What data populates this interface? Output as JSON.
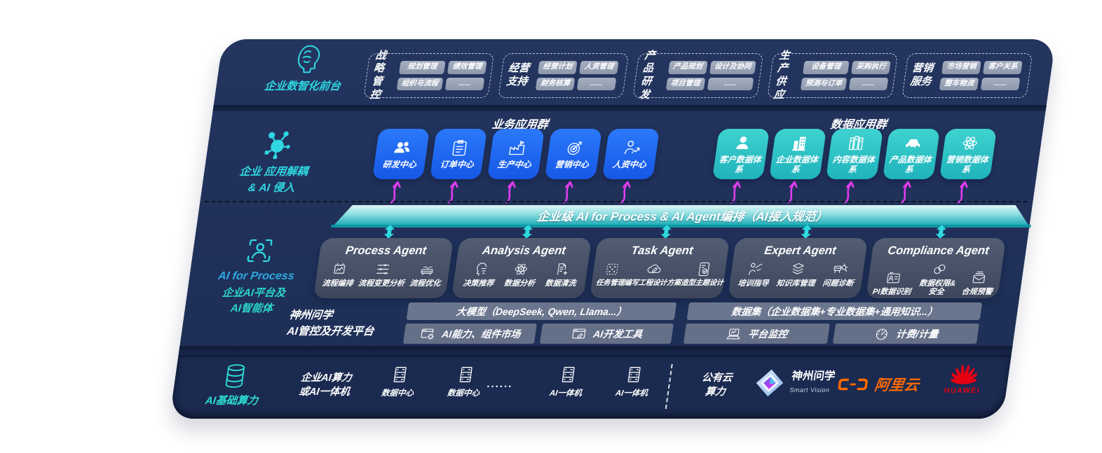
{
  "colors": {
    "accent_cyan": "#2FD8E2",
    "accent_teal": "#2BD5C8",
    "accent_blue": "#2EA9E2",
    "magenta": "#E03CEE",
    "blue_tile": "#1D6BF3",
    "teal_tile": "#2EC8CA",
    "banner_teal": "#22ADB8",
    "ali_orange": "#FF6A00",
    "huawei_red": "#E60012",
    "panel_navy": "#20315B"
  },
  "front_office": {
    "label": "企业数智化前台",
    "icon": "head-brain-icon",
    "groups": [
      {
        "title": "战略管控",
        "tags": [
          "规划管理",
          "绩效管理",
          "组织与流程",
          "......"
        ]
      },
      {
        "title": "经营支持",
        "tags": [
          "经营计划",
          "人资管理",
          "财务核算",
          "......"
        ]
      },
      {
        "title": "产品研发",
        "tags": [
          "产品规划",
          "设计及协同",
          "项目管理",
          "......"
        ]
      },
      {
        "title": "生产供应",
        "tags": [
          "设备管理",
          "采购执行",
          "预测与订单",
          "......"
        ]
      },
      {
        "title": "营销服务",
        "tags": [
          "市场营销",
          "客户关系",
          "整车物流",
          "......"
        ]
      }
    ]
  },
  "app_layer": {
    "icon": "neuron-icon",
    "label_line1": "企业 应用解耦",
    "label_line2": "& AI 侵入",
    "business_group": {
      "title": "业务应用群",
      "tiles": [
        {
          "label": "研发中心",
          "icon": "team-icon"
        },
        {
          "label": "订单中心",
          "icon": "clipboard-icon"
        },
        {
          "label": "生产中心",
          "icon": "factory-icon"
        },
        {
          "label": "营销中心",
          "icon": "target-icon"
        },
        {
          "label": "人资中心",
          "icon": "hr-icon"
        }
      ]
    },
    "data_group": {
      "title": "数据应用群",
      "tiles": [
        {
          "label": "客户数据体系",
          "icon": "person-icon"
        },
        {
          "label": "企业数据体系",
          "icon": "building-icon"
        },
        {
          "label": "内容数据体系",
          "icon": "books-icon"
        },
        {
          "label": "产品数据体系",
          "icon": "car-icon"
        },
        {
          "label": "营销数据体系",
          "icon": "atom-icon"
        }
      ]
    }
  },
  "banner": {
    "text": "企业级 AI for Process & AI Agent编排（AI接入规范）"
  },
  "platform_layer_label": {
    "icon": "scan-person-icon",
    "line1": "AI for Process",
    "line2": "企业AI平台及",
    "line3": "AI智能体"
  },
  "agents": [
    {
      "title": "Process Agent",
      "items": [
        {
          "label": "流程编排",
          "icon": "flow-box-icon"
        },
        {
          "label": "流程变更分析",
          "icon": "sliders-icon"
        },
        {
          "label": "流程优化",
          "icon": "conveyor-icon"
        }
      ]
    },
    {
      "title": "Analysis Agent",
      "items": [
        {
          "label": "决策推荐",
          "icon": "head-idea-icon"
        },
        {
          "label": "数据分析",
          "icon": "atom-icon"
        },
        {
          "label": "数据清洗",
          "icon": "doc-clean-icon"
        }
      ]
    },
    {
      "title": "Task Agent",
      "items": [
        {
          "label": "任务管理",
          "icon": "qr-grid-icon"
        },
        {
          "label": "编写工程设计方案",
          "icon": "cloud-edit-icon"
        },
        {
          "label": "造型主题设计",
          "icon": "design-card-icon"
        }
      ]
    },
    {
      "title": "Expert Agent",
      "items": [
        {
          "label": "培训指导",
          "icon": "training-icon"
        },
        {
          "label": "知识库管理",
          "icon": "layers-icon"
        },
        {
          "label": "问题诊断",
          "icon": "diagnose-icon"
        }
      ]
    },
    {
      "title": "Compliance Agent",
      "items": [
        {
          "label": "PI数据识别",
          "icon": "id-card-icon"
        },
        {
          "label": "数据权限& 安全",
          "icon": "privacy-icon"
        },
        {
          "label": "合规预警",
          "icon": "mail-alert-icon"
        }
      ]
    }
  ],
  "platform": {
    "label_line1": "神州问学",
    "label_line2": "AI管控及开发平台",
    "model_bar": "大模型（DeepSeek, Qwen, Llama...）",
    "dataset_bar": "数据集（企业数据集+专业数据集+通用知识...）",
    "left_cells": [
      {
        "label": "AI能力、组件市场",
        "icon": "window-gear-icon"
      },
      {
        "label": "AI开发工具",
        "icon": "window-tool-icon"
      }
    ],
    "right_cells": [
      {
        "label": "平台监控",
        "icon": "laptop-icon"
      },
      {
        "label": "计费/计量",
        "icon": "gauge-icon"
      }
    ]
  },
  "infra": {
    "icon": "database-icon",
    "label": "AI基础算力",
    "compute_line1": "企业AI算力",
    "compute_line2": "或AI一体机",
    "nodes": [
      {
        "label": "数据中心",
        "icon": "server-icon"
      },
      {
        "label": "数据中心",
        "icon": "server-icon"
      },
      {
        "label": "......"
      },
      {
        "label": "AI一体机",
        "icon": "server-icon"
      },
      {
        "label": "AI一体机",
        "icon": "server-icon"
      }
    ],
    "cloud_line1": "公有云",
    "cloud_line2": "算力",
    "vendors": [
      {
        "name": "神州问学",
        "sub": "Smart Vision",
        "icon": "smartvision-logo"
      },
      {
        "name": "阿里云",
        "icon": "aliyun-logo"
      },
      {
        "name": "HUAWEI",
        "icon": "huawei-logo"
      }
    ]
  }
}
